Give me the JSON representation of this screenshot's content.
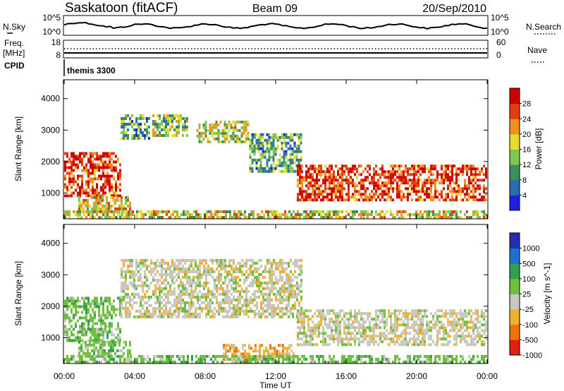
{
  "header": {
    "station": "Saskatoon (fitACF)",
    "beam": "Beam 09",
    "date": "20/Sep/2010"
  },
  "noise_panel": {
    "left_label": "N.Sky",
    "right_label": "N.Search",
    "left_ticks": [
      "10^5",
      "10^0"
    ],
    "right_ticks": [
      "10^5",
      "10^0"
    ]
  },
  "freq_panel": {
    "left_label": "Freq.",
    "left_unit": "[MHz]",
    "left_ticks": [
      "18",
      "8"
    ],
    "right_label": "Nave",
    "right_ticks": [
      "60",
      "0"
    ]
  },
  "cpid": {
    "label": "CPID",
    "program": "themis 3300"
  },
  "chart_data": [
    {
      "type": "heatmap",
      "name": "Power",
      "ylabel": "Slant Range [km]",
      "xlabel": "Time UT",
      "x_ticks": [
        "00:00",
        "04:00",
        "08:00",
        "12:00",
        "16:00",
        "20:00",
        "00:00"
      ],
      "x_range_hours": [
        0,
        24
      ],
      "y_ticks": [
        1000,
        2000,
        3000,
        4000
      ],
      "ylim": [
        180,
        4600
      ],
      "colorbar": {
        "label": "Power [dB]",
        "ticks": [
          "4",
          "8",
          "12",
          "16",
          "20",
          "24",
          "28"
        ],
        "range": [
          0,
          30
        ],
        "colors": [
          "#2020e0",
          "#2a6db0",
          "#3c8f5a",
          "#7ec850",
          "#e6dc30",
          "#f09020",
          "#e04010",
          "#d00000"
        ]
      },
      "regions": [
        {
          "t": [
            0.0,
            3.2
          ],
          "r": [
            900,
            2300
          ],
          "level": 0.85
        },
        {
          "t": [
            0.8,
            3.8
          ],
          "r": [
            400,
            900
          ],
          "level": 0.6
        },
        {
          "t": [
            3.2,
            4.8
          ],
          "r": [
            2700,
            3500
          ],
          "level": 0.35
        },
        {
          "t": [
            5.0,
            7.0
          ],
          "r": [
            2800,
            3500
          ],
          "level": 0.45
        },
        {
          "t": [
            7.5,
            10.5
          ],
          "r": [
            2600,
            3300
          ],
          "level": 0.5
        },
        {
          "t": [
            10.5,
            13.5
          ],
          "r": [
            1700,
            2900
          ],
          "level": 0.35
        },
        {
          "t": [
            13.2,
            24.0
          ],
          "r": [
            800,
            1900
          ],
          "level": 0.85
        },
        {
          "t": [
            0.0,
            24.0
          ],
          "r": [
            200,
            450
          ],
          "level": 0.55
        }
      ]
    },
    {
      "type": "heatmap",
      "name": "Velocity",
      "ylabel": "Slant Range [km]",
      "xlabel": "Time UT",
      "x_ticks": [
        "00:00",
        "04:00",
        "08:00",
        "12:00",
        "16:00",
        "20:00",
        "00:00"
      ],
      "x_range_hours": [
        0,
        24
      ],
      "y_ticks": [
        1000,
        2000,
        3000,
        4000
      ],
      "ylim": [
        180,
        4600
      ],
      "colorbar": {
        "label": "Velocity [m s^-1]",
        "ticks": [
          "1000",
          "500",
          "100",
          "25",
          "-25",
          "-100",
          "-500",
          "-1000"
        ],
        "colors": [
          "#2030b0",
          "#2070d0",
          "#30a050",
          "#70c040",
          "#c8c8c0",
          "#f0b030",
          "#f07010",
          "#e02010"
        ]
      },
      "regions": [
        {
          "t": [
            0.0,
            3.2
          ],
          "r": [
            900,
            2300
          ],
          "class": "green"
        },
        {
          "t": [
            0.8,
            3.8
          ],
          "r": [
            400,
            900
          ],
          "class": "green"
        },
        {
          "t": [
            3.2,
            13.5
          ],
          "r": [
            1700,
            3500
          ],
          "class": "grey"
        },
        {
          "t": [
            13.2,
            24.0
          ],
          "r": [
            800,
            1900
          ],
          "class": "grey"
        },
        {
          "t": [
            9.0,
            13.0
          ],
          "r": [
            300,
            800
          ],
          "class": "orange"
        },
        {
          "t": [
            0.0,
            24.0
          ],
          "r": [
            200,
            450
          ],
          "class": "green"
        }
      ]
    }
  ]
}
